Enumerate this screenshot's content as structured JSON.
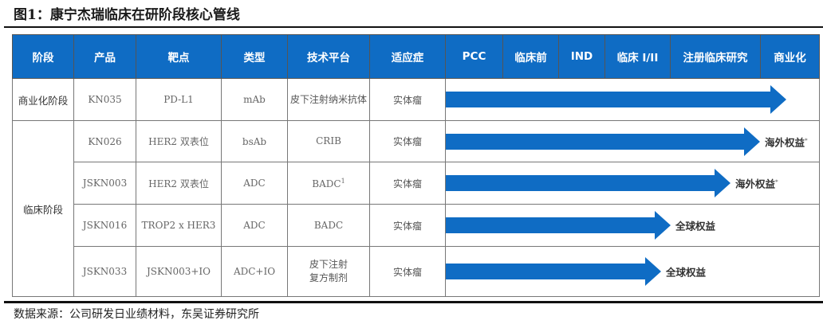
{
  "title": "图1：康宁杰瑞临床在研阶段核心管线",
  "headers": [
    "阶段",
    "产品",
    "靶点",
    "类型",
    "技术平台",
    "适应症",
    "PCC",
    "临床前",
    "IND",
    "临床 I/II",
    "注册临床研究",
    "商业化"
  ],
  "colors": {
    "header_bg": "#0f6cc4",
    "arrow": "#0f6cc4"
  },
  "stages": {
    "commercial": "商业化阶段",
    "clinical": "临床阶段"
  },
  "rows": [
    {
      "product": "KN035",
      "target": "PD-L1",
      "type": "mAb",
      "platform": "皮下注射纳米抗体",
      "indication": "实体瘤",
      "progress_stage": "商业化",
      "label": "",
      "note": ""
    },
    {
      "product": "KN026",
      "target": "HER2 双表位",
      "type": "bsAb",
      "platform": "CRIB",
      "indication": "实体瘤",
      "progress_stage": "注册临床研究",
      "label": "海外权益",
      "note": "*"
    },
    {
      "product": "JSKN003",
      "target": "HER2 双表位",
      "type": "ADC",
      "platform": "BADC",
      "platform_sup": "1",
      "indication": "实体瘤",
      "progress_stage": "注册临床研究",
      "label": "海外权益",
      "note": "*"
    },
    {
      "product": "JSKN016",
      "target": "TROP2 x HER3",
      "type": "ADC",
      "platform": "BADC",
      "indication": "实体瘤",
      "progress_stage": "临床 I/II",
      "label": "全球权益",
      "note": ""
    },
    {
      "product": "JSKN033",
      "target": "JSKN003+IO",
      "type": "ADC+IO",
      "platform": "皮下注射\n复方制剂",
      "indication": "实体瘤",
      "progress_stage": "临床 I/II",
      "label": "全球权益",
      "note": ""
    }
  ],
  "source": "数据来源：公司研发日业绩材料，东吴证券研究所"
}
